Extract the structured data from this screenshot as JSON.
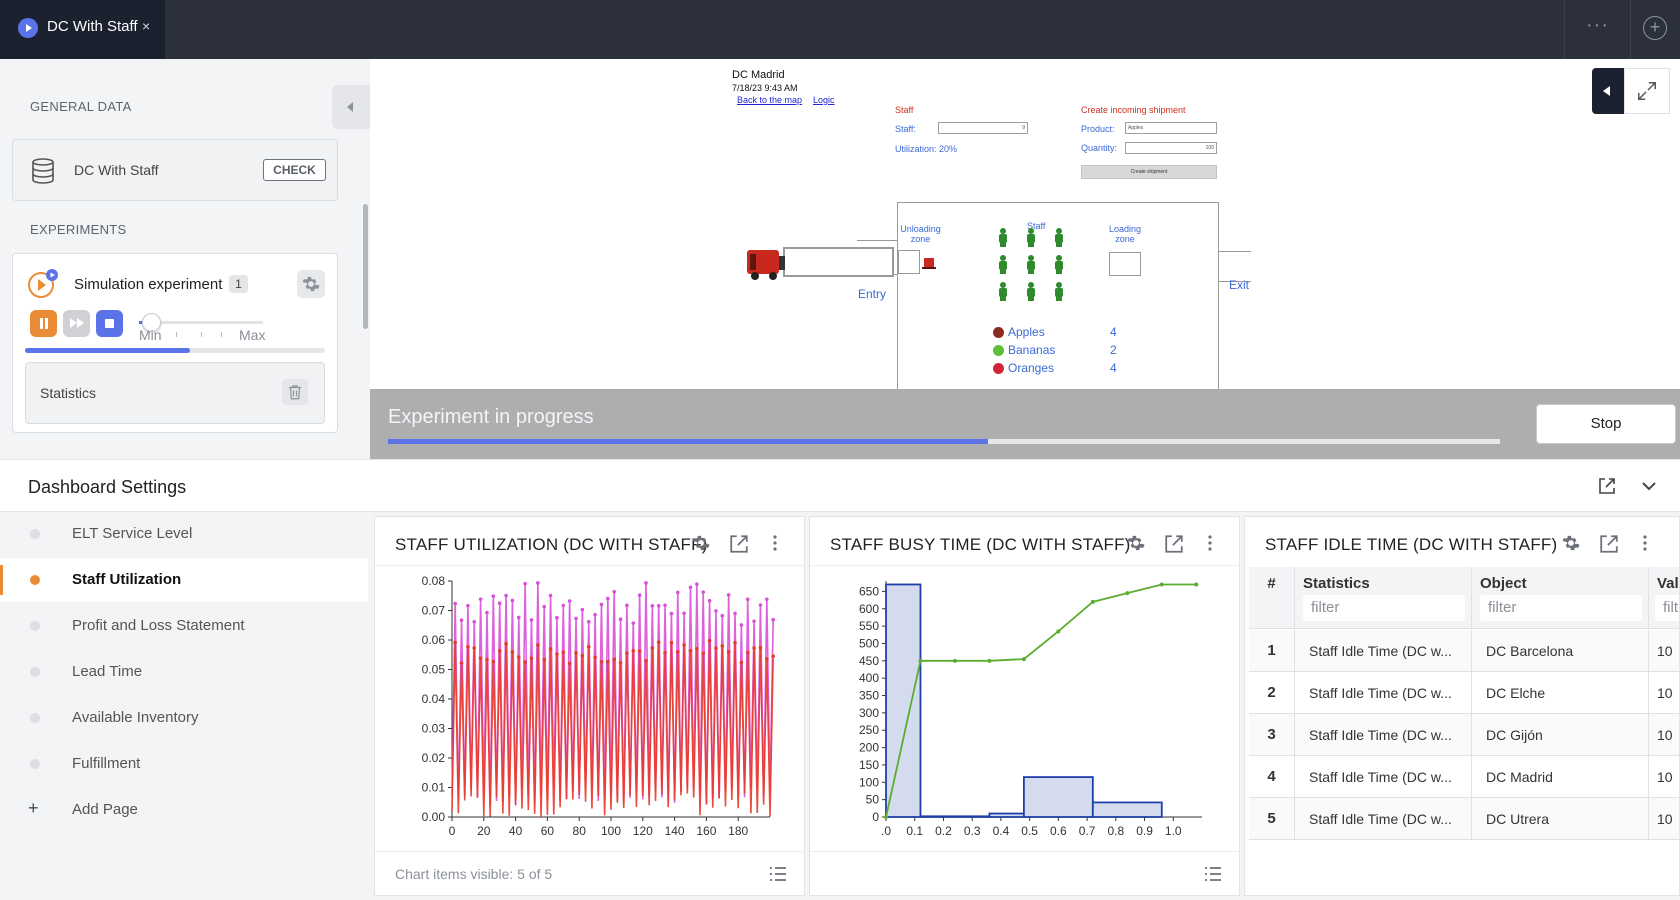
{
  "tab": {
    "title": "DC With Staff",
    "close": "×"
  },
  "topbar": {
    "dots": "···",
    "plus": "+"
  },
  "left": {
    "general_label": "GENERAL DATA",
    "model_name": "DC With Staff",
    "check_label": "CHECK",
    "experiments_label": "EXPERIMENTS",
    "experiment_title": "Simulation experiment",
    "experiment_badge": "1",
    "slider_min": "Min",
    "slider_max": "Max",
    "speed_level": 0.1,
    "experiment_progress": 0.55,
    "statistics_label": "Statistics"
  },
  "model": {
    "dc_name": "DC Madrid",
    "datetime": "7/18/23 9:43 AM",
    "back_link": "Back to the map",
    "logic_link": "Logic",
    "staff_heading": "Staff",
    "staff_label": "Staff:",
    "staff_value": "9",
    "utilization_label": "Utilization: 20%",
    "shipment_heading": "Create incoming shipment",
    "product_label": "Product:",
    "product_value": "Apples",
    "quantity_label": "Quantity:",
    "quantity_value": "100",
    "create_button": "Create shipment",
    "unloading_zone": "Unloading zone",
    "staff_zone": "Staff",
    "loading_zone": "Loading zone",
    "entry": "Entry",
    "exit": "Exit",
    "inventory": [
      {
        "name": "Apples",
        "count": "4",
        "color": "#8b2a22"
      },
      {
        "name": "Bananas",
        "count": "2",
        "color": "#5bbf3a"
      },
      {
        "name": "Oranges",
        "count": "4",
        "color": "#d1263a"
      }
    ]
  },
  "overlay": {
    "text": "Experiment in progress",
    "progress": 0.54,
    "stop_label": "Stop"
  },
  "dashboard": {
    "title": "Dashboard Settings",
    "nav": [
      {
        "label": "ELT Service Level",
        "active": false
      },
      {
        "label": "Staff Utilization",
        "active": true
      },
      {
        "label": "Profit and Loss Statement",
        "active": false
      },
      {
        "label": "Lead Time",
        "active": false
      },
      {
        "label": "Available Inventory",
        "active": false
      },
      {
        "label": "Fulfillment",
        "active": false
      }
    ],
    "add_page": "Add Page",
    "add_plus": "+"
  },
  "panels": {
    "utilization": {
      "title": "STAFF UTILIZATION (DC WITH STAFF)",
      "footer": "Chart items visible: 5 of 5"
    },
    "busy": {
      "title": "STAFF BUSY TIME (DC WITH STAFF)"
    },
    "idle": {
      "title": "STAFF IDLE TIME (DC WITH STAFF)"
    }
  },
  "table": {
    "headers": [
      "#",
      "Statistics",
      "Object",
      "Val"
    ],
    "filter_placeholder": "filter",
    "filter_short": "filt",
    "rows": [
      {
        "num": "1",
        "stat": "Staff Idle Time (DC w...",
        "object": "DC Barcelona",
        "val": "10"
      },
      {
        "num": "2",
        "stat": "Staff Idle Time (DC w...",
        "object": "DC Elche",
        "val": "10"
      },
      {
        "num": "3",
        "stat": "Staff Idle Time (DC w...",
        "object": "DC Gijón",
        "val": "10"
      },
      {
        "num": "4",
        "stat": "Staff Idle Time (DC w...",
        "object": "DC Madrid",
        "val": "10"
      },
      {
        "num": "5",
        "stat": "Staff Idle Time (DC w...",
        "object": "DC Utrera",
        "val": "10"
      }
    ]
  },
  "chart_data": [
    {
      "type": "line",
      "title": "STAFF UTILIZATION (DC WITH STAFF)",
      "xlim": [
        0,
        200
      ],
      "ylim": [
        0,
        0.08
      ],
      "x_ticks": [
        "0",
        "20",
        "40",
        "60",
        "80",
        "100",
        "120",
        "140",
        "160",
        "180"
      ],
      "y_ticks": [
        "0.00",
        "0.01",
        "0.02",
        "0.03",
        "0.04",
        "0.05",
        "0.06",
        "0.07",
        "0.08"
      ],
      "series": [
        {
          "color": "#d94fd9",
          "peak_range": [
            0.065,
            0.08
          ],
          "period": 4
        },
        {
          "color": "#e83a2a",
          "peak_range": [
            0.052,
            0.06
          ],
          "period": 4
        }
      ]
    },
    {
      "type": "bar",
      "title": "STAFF BUSY TIME (DC WITH STAFF)",
      "xlim": [
        0,
        1.1
      ],
      "ylim": [
        0,
        680
      ],
      "x_ticks": [
        ".0",
        "0.1",
        "0.2",
        "0.3",
        "0.4",
        "0.5",
        "0.6",
        "0.7",
        "0.8",
        "0.9",
        "1.0"
      ],
      "y_ticks": [
        "0",
        "50",
        "100",
        "150",
        "200",
        "250",
        "300",
        "350",
        "400",
        "450",
        "500",
        "550",
        "600",
        "650"
      ],
      "bins": [
        {
          "x0": 0.0,
          "x1": 0.12,
          "value": 670
        },
        {
          "x0": 0.12,
          "x1": 0.36,
          "value": 2
        },
        {
          "x0": 0.36,
          "x1": 0.48,
          "value": 10
        },
        {
          "x0": 0.48,
          "x1": 0.72,
          "value": 115
        },
        {
          "x0": 0.72,
          "x1": 0.96,
          "value": 42
        },
        {
          "x0": 0.96,
          "x1": 1.08,
          "value": 0
        }
      ],
      "cumulative": {
        "x": [
          0.0,
          0.12,
          0.24,
          0.36,
          0.48,
          0.6,
          0.72,
          0.84,
          0.96,
          1.08
        ],
        "y": [
          0,
          450,
          450,
          450,
          455,
          535,
          620,
          645,
          670,
          670
        ],
        "color": "#5aad2f"
      }
    }
  ]
}
